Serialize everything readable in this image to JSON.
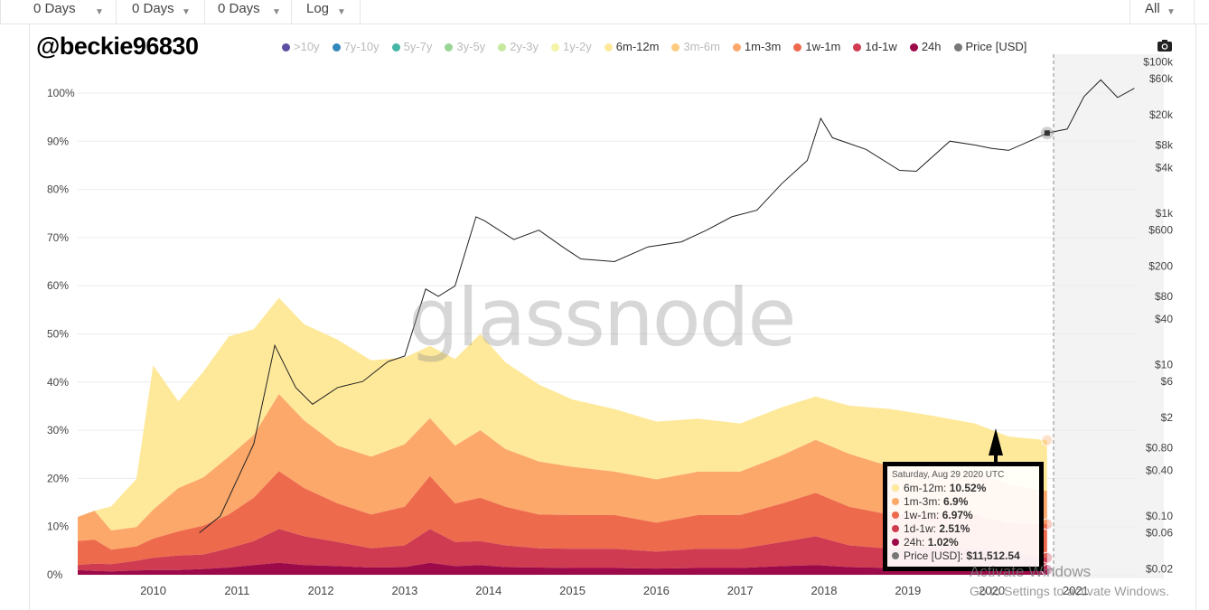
{
  "toolbar": {
    "range1": "0 Days",
    "range2": "0 Days",
    "range3": "0 Days",
    "scale": "Log",
    "period": "All"
  },
  "username_overlay": "@beckie96830",
  "watermark": "glassnode",
  "legend": [
    {
      "label": ">10y",
      "color": "#5e4fa2",
      "active": false
    },
    {
      "label": "7y-10y",
      "color": "#3288bd",
      "active": false
    },
    {
      "label": "5y-7y",
      "color": "#45b5a6",
      "active": false
    },
    {
      "label": "3y-5y",
      "color": "#99d594",
      "active": false
    },
    {
      "label": "2y-3y",
      "color": "#c7e89e",
      "active": false
    },
    {
      "label": "1y-2y",
      "color": "#f4f3a6",
      "active": false
    },
    {
      "label": "6m-12m",
      "color": "#fee99a",
      "active": true
    },
    {
      "label": "3m-6m",
      "color": "#fdcb80",
      "active": false
    },
    {
      "label": "1m-3m",
      "color": "#fca86a",
      "active": true
    },
    {
      "label": "1w-1m",
      "color": "#ee6a4d",
      "active": true
    },
    {
      "label": "1d-1w",
      "color": "#cf3b50",
      "active": true
    },
    {
      "label": "24h",
      "color": "#9c0a4a",
      "active": true
    },
    {
      "label": "Price [USD]",
      "color": "#777777",
      "active": true
    }
  ],
  "chart_data": {
    "type": "area",
    "stacked": true,
    "title": "",
    "x_ticks": [
      "2010",
      "2011",
      "2012",
      "2013",
      "2014",
      "2015",
      "2016",
      "2017",
      "2018",
      "2019",
      "2020",
      "2021"
    ],
    "y_left_ticks": [
      "100%",
      "90%",
      "80%",
      "70%",
      "60%",
      "50%",
      "40%",
      "30%",
      "20%",
      "10%",
      "0%"
    ],
    "y_right_ticks": [
      "$100k",
      "$60k",
      "$20k",
      "$8k",
      "$4k",
      "$1k",
      "$600",
      "$200",
      "$80",
      "$40",
      "$10",
      "$6",
      "$2",
      "$0.80",
      "$0.40",
      "$0.10",
      "$0.06",
      "$0.02"
    ],
    "y_right_scale": "log",
    "x": [
      2009.1,
      2009.3,
      2009.5,
      2009.8,
      2010.0,
      2010.3,
      2010.6,
      2010.9,
      2011.2,
      2011.5,
      2011.8,
      2012.2,
      2012.6,
      2013.0,
      2013.3,
      2013.6,
      2013.9,
      2014.2,
      2014.6,
      2015.0,
      2015.5,
      2016.0,
      2016.5,
      2017.0,
      2017.5,
      2017.9,
      2018.3,
      2018.8,
      2019.3,
      2019.8,
      2020.2,
      2020.66
    ],
    "series": [
      {
        "name": "24h",
        "values": [
          1,
          0.8,
          0.7,
          0.9,
          1,
          1,
          1.2,
          1.5,
          2,
          2.5,
          2,
          1.8,
          1.5,
          1.6,
          2.5,
          1.8,
          2,
          1.6,
          1.5,
          1.4,
          1.4,
          1.3,
          1.4,
          1.4,
          1.8,
          2,
          1.6,
          1.4,
          1.5,
          1.4,
          1.2,
          1.02
        ]
      },
      {
        "name": "1d-1w",
        "values": [
          1,
          1.5,
          1.5,
          2,
          2.5,
          3,
          3,
          4,
          5,
          7,
          6,
          5,
          4,
          4.5,
          7,
          5,
          5,
          4.5,
          4,
          4,
          4,
          3.5,
          4,
          4,
          5,
          6,
          4.5,
          4,
          4.5,
          4,
          3.5,
          2.51
        ]
      },
      {
        "name": "1w-1m",
        "values": [
          5,
          5,
          3,
          3,
          4,
          5,
          6,
          7,
          9,
          12,
          10,
          8,
          7,
          8,
          11,
          8,
          9,
          8,
          7,
          7,
          7,
          6,
          7,
          7,
          8,
          9,
          8,
          7,
          7,
          7,
          6,
          6.97
        ]
      },
      {
        "name": "1m-3m",
        "values": [
          5,
          6,
          4,
          4,
          6,
          9,
          10,
          12,
          13,
          16,
          14,
          12,
          12,
          13,
          12,
          12,
          14,
          12,
          11,
          10,
          9,
          9,
          9,
          9,
          10,
          11,
          11,
          10,
          9,
          9,
          8,
          6.9
        ]
      },
      {
        "name": "6m-12m",
        "values": [
          0,
          0,
          5,
          10,
          30,
          18,
          22,
          25,
          22,
          20,
          20,
          22,
          20,
          18,
          15,
          18,
          20,
          18,
          16,
          14,
          13,
          12,
          11,
          10,
          10,
          9,
          10,
          12,
          11,
          10,
          10,
          10.52
        ]
      }
    ],
    "price_series": {
      "name": "Price [USD]",
      "x": [
        2010.55,
        2010.8,
        2011.0,
        2011.2,
        2011.45,
        2011.7,
        2011.9,
        2012.2,
        2012.5,
        2012.8,
        2013.0,
        2013.25,
        2013.4,
        2013.6,
        2013.85,
        2013.95,
        2014.3,
        2014.6,
        2014.9,
        2015.1,
        2015.5,
        2015.9,
        2016.3,
        2016.6,
        2016.9,
        2017.2,
        2017.5,
        2017.8,
        2017.96,
        2018.1,
        2018.5,
        2018.9,
        2019.1,
        2019.5,
        2019.8,
        2020.0,
        2020.2,
        2020.5,
        2020.66,
        2020.9,
        2021.1,
        2021.3,
        2021.5,
        2021.7
      ],
      "values": [
        0.06,
        0.1,
        0.3,
        0.9,
        18,
        5,
        3,
        5,
        6,
        11,
        13,
        100,
        80,
        110,
        900,
        800,
        450,
        600,
        350,
        250,
        230,
        360,
        420,
        600,
        900,
        1100,
        2500,
        5000,
        18000,
        10000,
        7000,
        3700,
        3600,
        9000,
        8000,
        7200,
        6800,
        9500,
        11512.54,
        13000,
        35000,
        58000,
        34000,
        45000
      ]
    },
    "ylim_left": [
      0,
      100
    ],
    "ylim_right": [
      0.015,
      120000
    ],
    "grid": true,
    "legend_position": "top"
  },
  "tooltip": {
    "date": "Saturday, Aug 29 2020 UTC",
    "rows": [
      {
        "label": "6m-12m:",
        "value": "10.52%",
        "color": "#fee99a"
      },
      {
        "label": "1m-3m:",
        "value": "6.9%",
        "color": "#fca86a"
      },
      {
        "label": "1w-1m:",
        "value": "6.97%",
        "color": "#ee6a4d"
      },
      {
        "label": "1d-1w:",
        "value": "2.51%",
        "color": "#cf3b50"
      },
      {
        "label": "24h:",
        "value": "1.02%",
        "color": "#9c0a4a"
      },
      {
        "label": "Price [USD]:",
        "value": "$11,512.54",
        "color": "#777777"
      }
    ]
  },
  "os_overlay": {
    "line1": "Activate Windows",
    "line2": "Go to Settings to activate Windows."
  }
}
